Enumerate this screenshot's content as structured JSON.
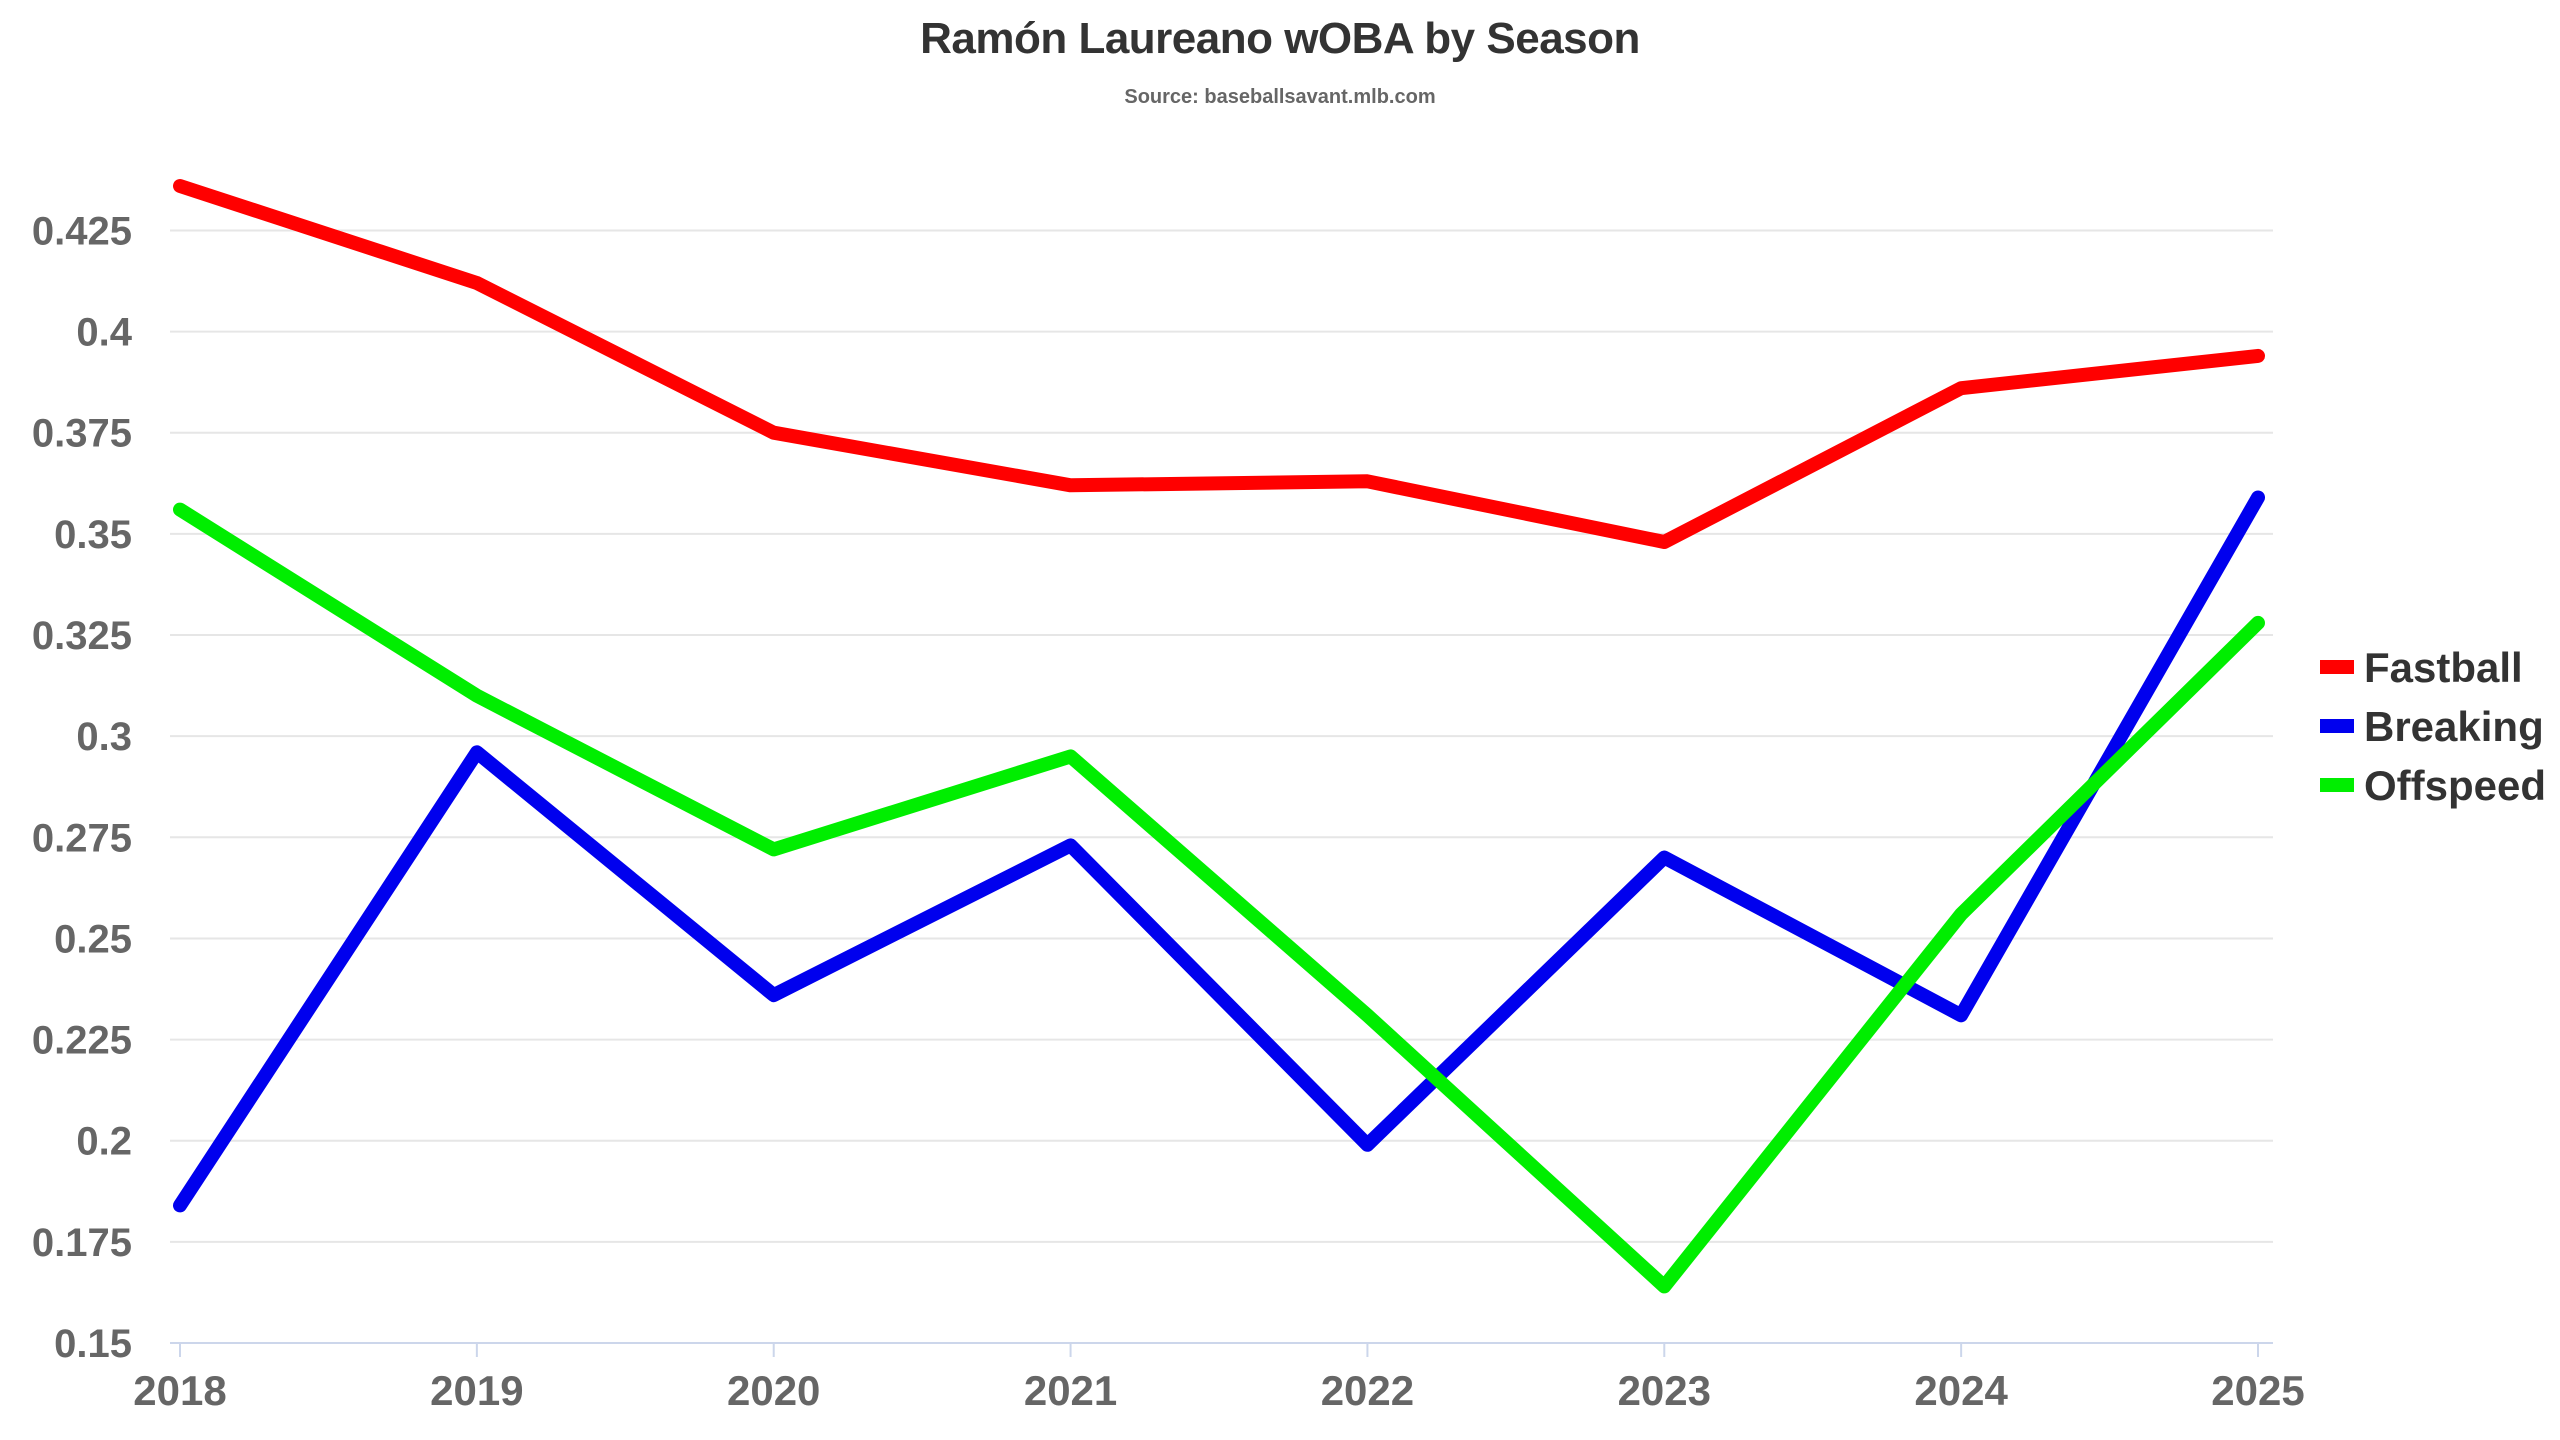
{
  "chart_data": {
    "type": "line",
    "title": "Ramón Laureano wOBA by Season",
    "subtitle": "Source: baseballsavant.mlb.com",
    "xlabel": "",
    "ylabel": "",
    "x": [
      "2018",
      "2019",
      "2020",
      "2021",
      "2022",
      "2023",
      "2024",
      "2025"
    ],
    "ylim": [
      0.15,
      0.435
    ],
    "yticks": [
      0.15,
      0.175,
      0.2,
      0.225,
      0.25,
      0.275,
      0.3,
      0.325,
      0.35,
      0.375,
      0.4,
      0.425
    ],
    "ytick_labels": [
      "0.15",
      "0.175",
      "0.2",
      "0.225",
      "0.25",
      "0.275",
      "0.3",
      "0.325",
      "0.35",
      "0.375",
      "0.4",
      "0.425"
    ],
    "grid": true,
    "legend_position": "right",
    "series": [
      {
        "name": "Fastball",
        "color": "#ff0000",
        "values": [
          0.436,
          0.412,
          0.375,
          0.362,
          0.363,
          0.348,
          0.386,
          0.394
        ]
      },
      {
        "name": "Breaking",
        "color": "#0000ee",
        "values": [
          0.184,
          0.296,
          0.236,
          0.273,
          0.199,
          0.27,
          0.231,
          0.359
        ]
      },
      {
        "name": "Offspeed",
        "color": "#00ee00",
        "values": [
          0.356,
          0.31,
          0.272,
          0.295,
          0.231,
          0.164,
          0.256,
          0.328
        ]
      }
    ]
  }
}
